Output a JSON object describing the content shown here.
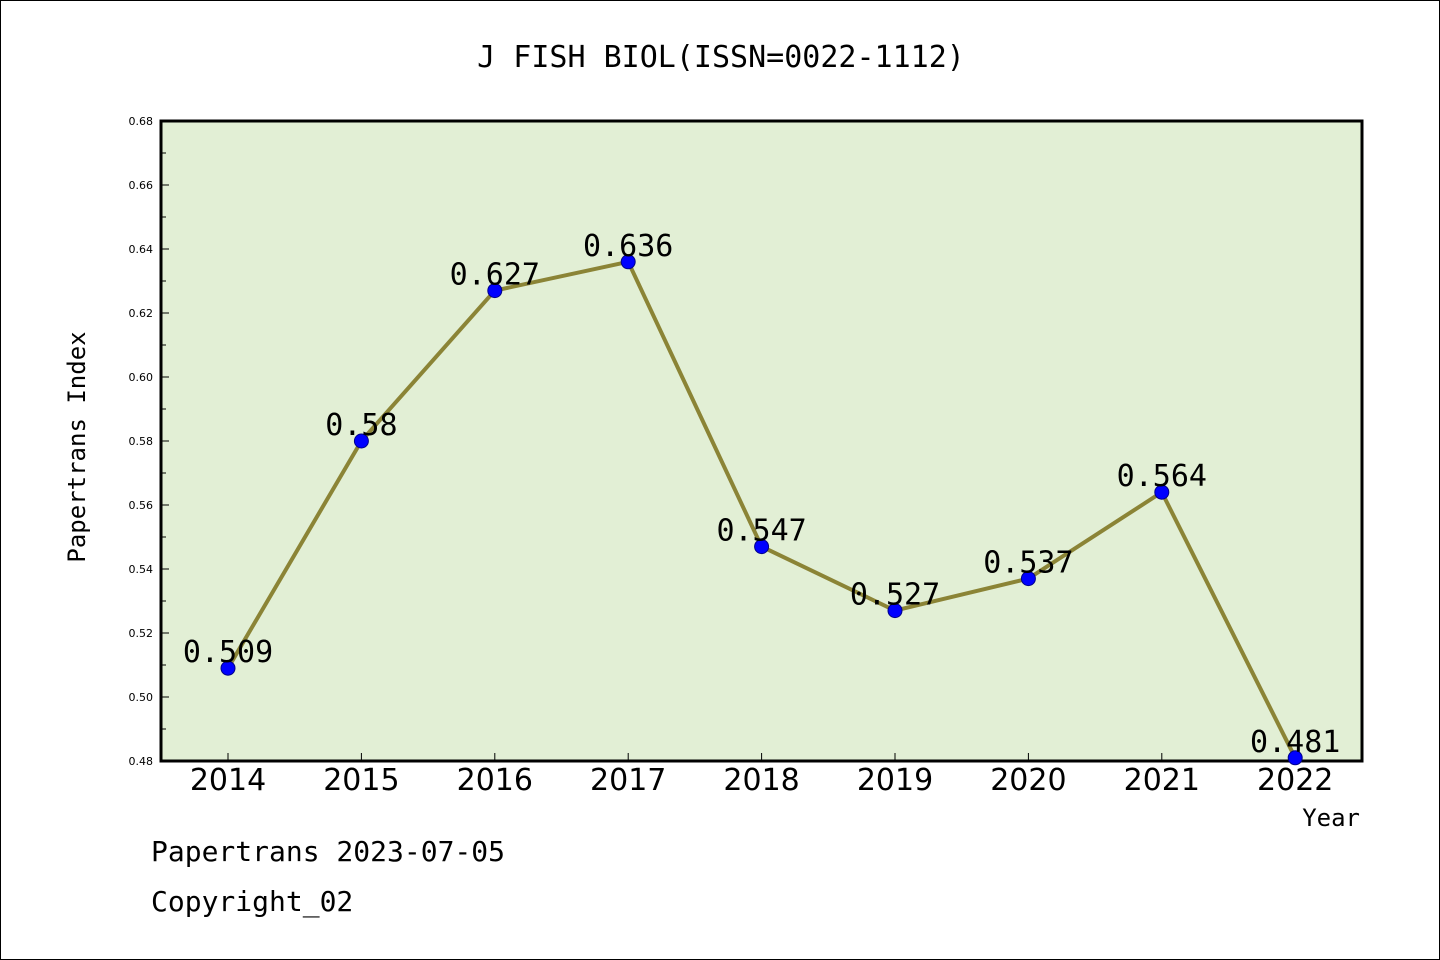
{
  "chart_data": {
    "type": "line",
    "title": "J FISH BIOL(ISSN=0022-1112)",
    "xlabel": "Year",
    "ylabel": "Papertrans Index",
    "categories": [
      "2014",
      "2015",
      "2016",
      "2017",
      "2018",
      "2019",
      "2020",
      "2021",
      "2022"
    ],
    "values": [
      0.509,
      0.58,
      0.627,
      0.636,
      0.547,
      0.527,
      0.537,
      0.564,
      0.481
    ],
    "data_labels": [
      "0.509",
      "0.58",
      "0.627",
      "0.636",
      "0.547",
      "0.527",
      "0.537",
      "0.564",
      "0.481"
    ],
    "ylim": [
      0.48,
      0.68
    ],
    "yticks": [
      "0.48",
      "0.50",
      "0.52",
      "0.54",
      "0.56",
      "0.58",
      "0.60",
      "0.62",
      "0.64",
      "0.66",
      "0.68"
    ],
    "grid": false,
    "legend": "none",
    "colors": {
      "plot_background": "#e2efd5",
      "line": "#8b8436",
      "marker": "#0000ff"
    }
  },
  "footer": {
    "date_line": "Papertrans 2023-07-05",
    "copyright": "Copyright_02"
  }
}
